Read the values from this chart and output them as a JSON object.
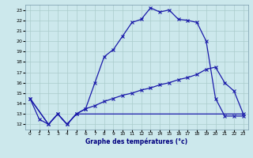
{
  "background_color": "#cce8ec",
  "grid_color": "#aacccc",
  "line_color": "#1a1aaa",
  "xlabel": "Graphe des températures (°c)",
  "xlim": [
    -0.5,
    23.5
  ],
  "ylim": [
    11.5,
    23.5
  ],
  "yticks": [
    12,
    13,
    14,
    15,
    16,
    17,
    18,
    19,
    20,
    21,
    22,
    23
  ],
  "xticks": [
    0,
    1,
    2,
    3,
    4,
    5,
    6,
    7,
    8,
    9,
    10,
    11,
    12,
    13,
    14,
    15,
    16,
    17,
    18,
    19,
    20,
    21,
    22,
    23
  ],
  "line1_x": [
    0,
    1,
    2,
    3,
    4,
    5,
    6,
    7,
    8,
    9,
    10,
    11,
    12,
    13,
    14,
    15,
    16,
    17,
    18,
    19,
    20,
    21,
    22,
    23
  ],
  "line1_y": [
    14.5,
    12.5,
    12.0,
    13.0,
    12.0,
    13.0,
    13.5,
    16.0,
    18.5,
    19.2,
    20.5,
    21.8,
    22.1,
    23.2,
    22.8,
    23.0,
    22.1,
    22.0,
    21.8,
    20.0,
    14.5,
    12.8,
    12.8,
    12.8
  ],
  "line2_x": [
    0,
    2,
    3,
    4,
    5,
    6,
    7,
    8,
    9,
    10,
    11,
    12,
    13,
    14,
    15,
    16,
    17,
    18,
    19,
    20,
    21,
    22,
    23
  ],
  "line2_y": [
    14.5,
    12.0,
    13.0,
    12.0,
    13.0,
    13.5,
    13.8,
    14.2,
    14.5,
    14.8,
    15.0,
    15.3,
    15.5,
    15.8,
    16.0,
    16.3,
    16.5,
    16.8,
    17.3,
    17.5,
    16.0,
    15.2,
    13.0
  ],
  "line3_x": [
    0,
    2,
    3,
    4,
    5,
    6,
    7,
    8,
    9,
    10,
    11,
    12,
    13,
    14,
    15,
    16,
    17,
    18,
    19,
    20,
    21,
    22,
    23
  ],
  "line3_y": [
    14.5,
    12.0,
    13.0,
    12.0,
    13.0,
    13.0,
    13.0,
    13.0,
    13.0,
    13.0,
    13.0,
    13.0,
    13.0,
    13.0,
    13.0,
    13.0,
    13.0,
    13.0,
    13.0,
    13.0,
    13.0,
    13.0,
    13.0
  ]
}
